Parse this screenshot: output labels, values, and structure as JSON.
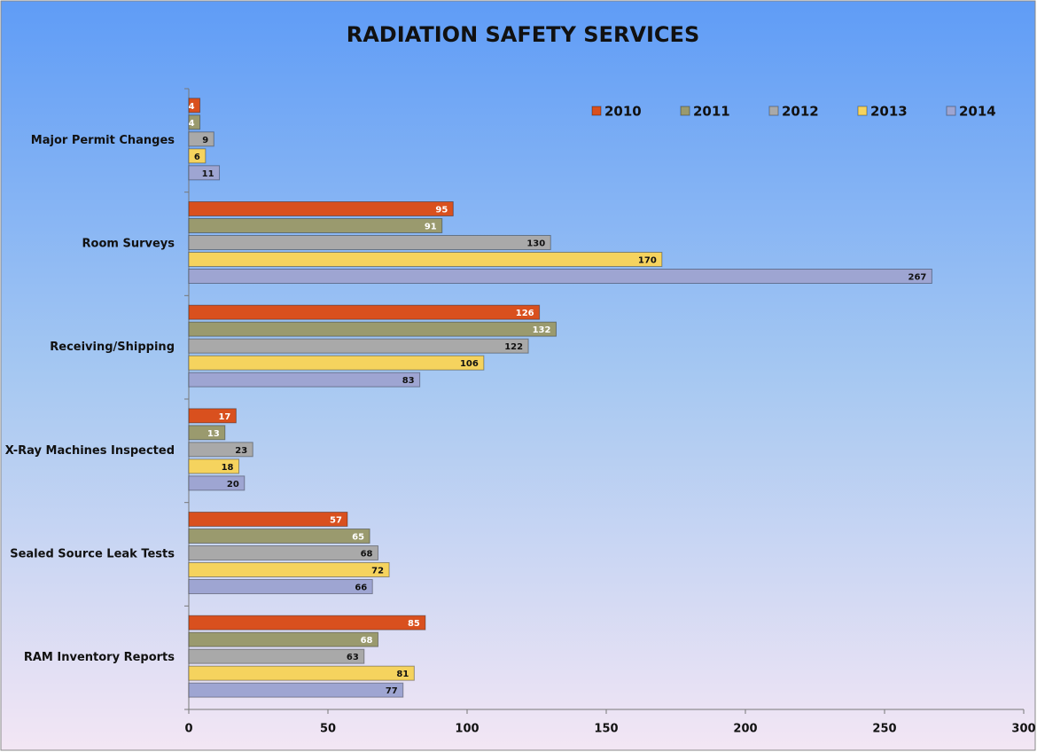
{
  "chart_data": {
    "type": "bar",
    "orientation": "horizontal",
    "title": "RADIATION SAFETY SERVICES",
    "categories": [
      "Major Permit Changes",
      "Room Surveys",
      "Receiving/Shipping",
      "X-Ray Machines Inspected",
      "Sealed Source Leak Tests",
      "RAM Inventory Reports"
    ],
    "series": [
      {
        "name": "2010",
        "color": "#d9501e",
        "values": [
          4,
          95,
          126,
          17,
          57,
          85
        ]
      },
      {
        "name": "2011",
        "color": "#9a9a6e",
        "values": [
          4,
          91,
          132,
          13,
          65,
          68
        ]
      },
      {
        "name": "2012",
        "color": "#a9a9a9",
        "values": [
          9,
          130,
          122,
          23,
          68,
          63
        ]
      },
      {
        "name": "2013",
        "color": "#f5d35e",
        "values": [
          6,
          170,
          106,
          18,
          72,
          81
        ]
      },
      {
        "name": "2014",
        "color": "#9ea5d2",
        "values": [
          11,
          267,
          83,
          20,
          66,
          77
        ]
      }
    ],
    "xlim": [
      0,
      300
    ],
    "xticks": [
      0,
      50,
      100,
      150,
      200,
      250,
      300
    ],
    "legend": "top-right"
  }
}
